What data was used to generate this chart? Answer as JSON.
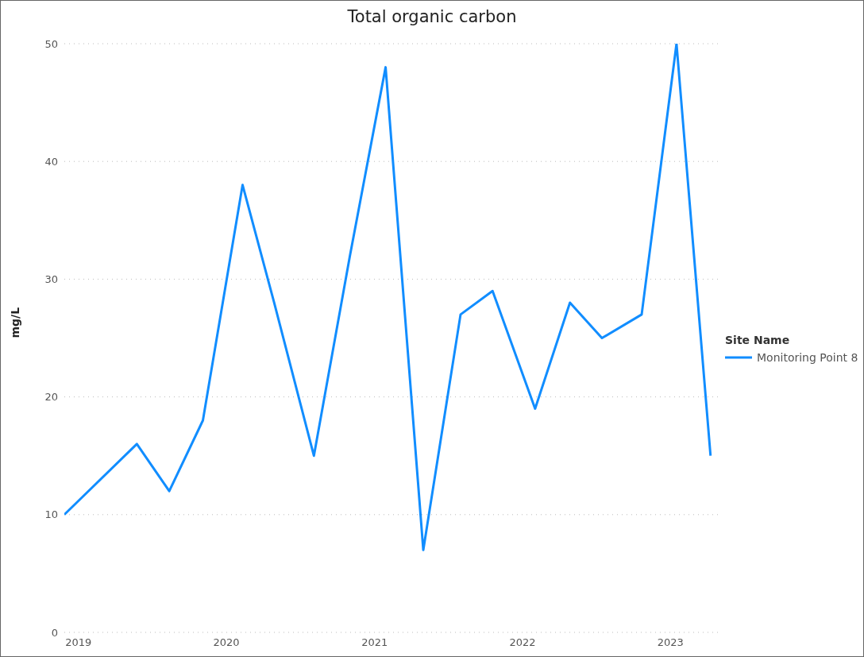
{
  "chart_data": {
    "type": "line",
    "title": "Total organic carbon",
    "ylabel": "mg/L",
    "legend_title": "Site Name",
    "x": [
      "2018-11-27",
      "2019-05-25",
      "2019-08-13",
      "2019-11-04",
      "2020-02-10",
      "2020-04-28",
      "2020-08-04",
      "2020-11-01",
      "2021-01-28",
      "2021-05-01",
      "2021-08-01",
      "2021-10-19",
      "2022-02-01",
      "2022-04-28",
      "2022-07-16",
      "2022-10-22",
      "2023-01-16",
      "2023-04-10"
    ],
    "series": [
      {
        "name": "Monitoring Point 8",
        "color": "#118dff",
        "values": [
          10,
          16,
          12,
          18,
          38,
          28,
          15,
          32,
          48,
          7,
          27,
          29,
          19,
          28,
          25,
          27,
          50,
          15
        ]
      }
    ],
    "xlim": [
      "2018-11-27",
      "2023-05-04"
    ],
    "xticks": [
      {
        "value": "2019-01-01",
        "label": "2019"
      },
      {
        "value": "2020-01-01",
        "label": "2020"
      },
      {
        "value": "2021-01-01",
        "label": "2021"
      },
      {
        "value": "2022-01-01",
        "label": "2022"
      },
      {
        "value": "2023-01-01",
        "label": "2023"
      }
    ],
    "ylim": [
      0,
      50
    ],
    "yticks": [
      0,
      10,
      20,
      30,
      40,
      50
    ],
    "grid": "y",
    "legend": "right"
  }
}
